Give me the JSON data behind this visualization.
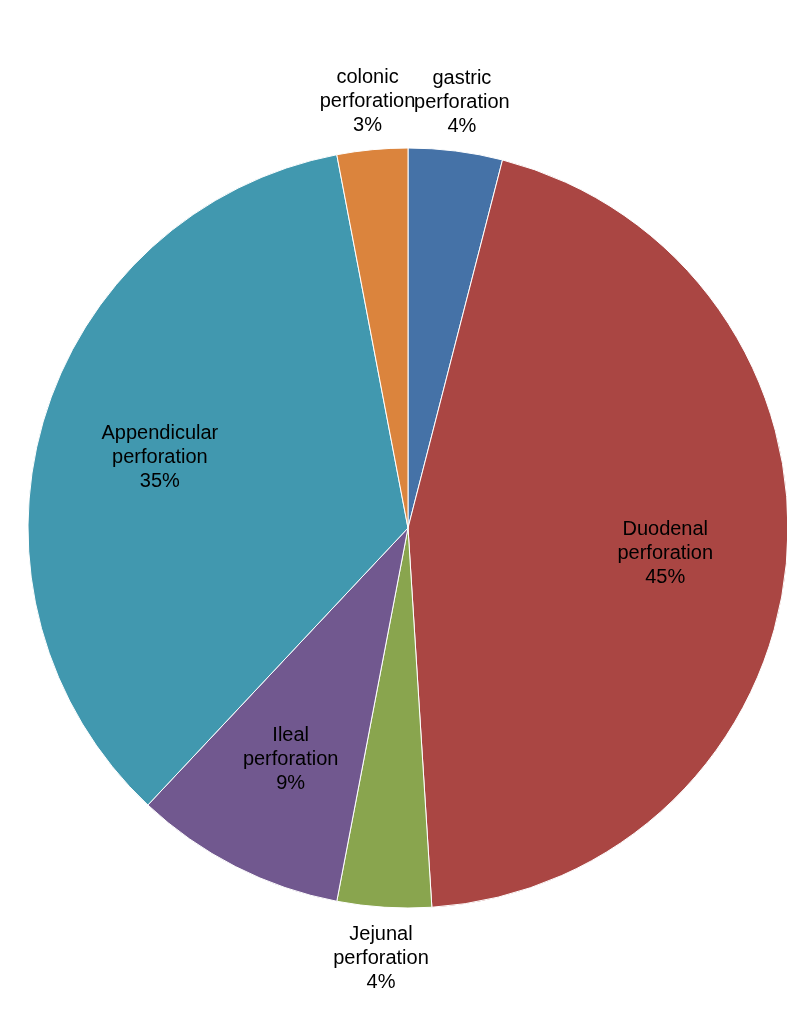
{
  "chart_data": {
    "type": "pie",
    "categories": [
      "gastric perforation",
      "Duodenal perforation",
      "Jejunal perforation",
      "Ileal perforation",
      "Appendicular perforation",
      "colonic perforation"
    ],
    "values": [
      4,
      45,
      4,
      9,
      35,
      3
    ],
    "value_labels": [
      "4%",
      "45%",
      "4%",
      "9%",
      "35%",
      "3%"
    ],
    "colors": [
      "#4572a7",
      "#aa4643",
      "#89a54e",
      "#71588f",
      "#4198af",
      "#db843d"
    ]
  }
}
